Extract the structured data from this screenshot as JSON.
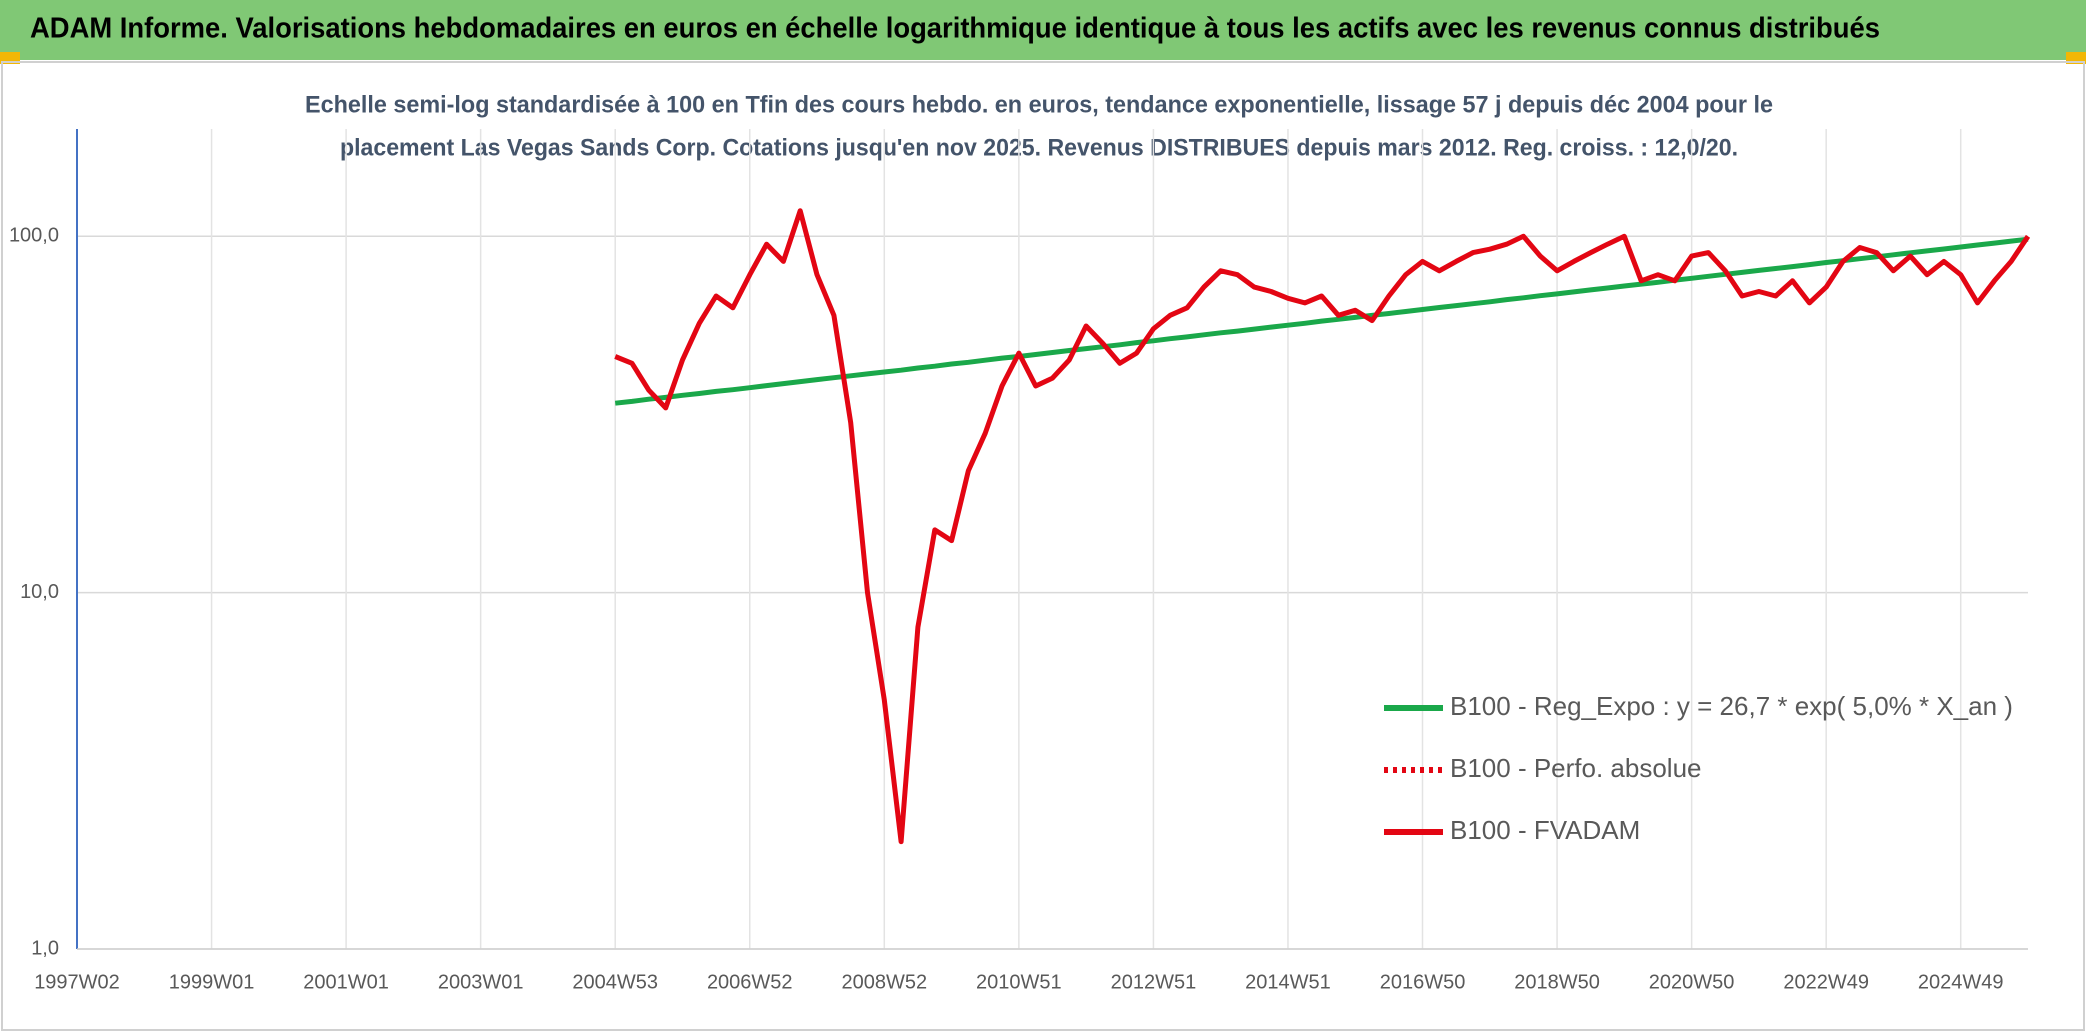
{
  "chart_data": {
    "type": "line",
    "title": "ADAM Informe. Valorisations hebdomadaires en euros en échelle logarithmique identique à tous les actifs avec les revenus connus distribués",
    "subtitle": [
      "Echelle semi-log standardisée à 100 en Tfin des cours hebdo. en euros, tendance exponentielle, lissage 57 j depuis déc 2004 pour le",
      "placement Las Vegas Sands Corp. Cotations jusqu'en nov 2025. Revenus DISTRIBUES depuis mars 2012. Reg. croiss. : 12,0/20."
    ],
    "categories": [
      "1997W02",
      null,
      null,
      null,
      null,
      null,
      null,
      null,
      "1999W01",
      null,
      null,
      null,
      null,
      null,
      null,
      null,
      "2001W01",
      null,
      null,
      null,
      null,
      null,
      null,
      null,
      "2003W01",
      null,
      null,
      null,
      null,
      null,
      null,
      null,
      "2004W53",
      null,
      null,
      null,
      null,
      null,
      null,
      null,
      "2006W52",
      null,
      null,
      null,
      null,
      null,
      null,
      null,
      "2008W52",
      null,
      null,
      null,
      null,
      null,
      null,
      null,
      "2010W51",
      null,
      null,
      null,
      null,
      null,
      null,
      null,
      "2012W51",
      null,
      null,
      null,
      null,
      null,
      null,
      null,
      "2014W51",
      null,
      null,
      null,
      null,
      null,
      null,
      null,
      "2016W50",
      null,
      null,
      null,
      null,
      null,
      null,
      null,
      "2018W50",
      null,
      null,
      null,
      null,
      null,
      null,
      null,
      "2020W50",
      null,
      null,
      null,
      null,
      null,
      null,
      null,
      "2022W49",
      null,
      null,
      null,
      null,
      null,
      null,
      null,
      "2024W49",
      null,
      null,
      null,
      null
    ],
    "series": [
      {
        "name": "B100 - Reg_Expo : y = 26,7 * exp( 5,0% *  X_an )",
        "color": "#1aa84a",
        "style": "solid",
        "values": [
          null,
          null,
          null,
          null,
          null,
          null,
          null,
          null,
          null,
          null,
          null,
          null,
          null,
          null,
          null,
          null,
          null,
          null,
          null,
          null,
          null,
          null,
          null,
          null,
          null,
          null,
          null,
          null,
          null,
          null,
          null,
          null,
          34.0,
          34.4,
          34.9,
          35.3,
          35.8,
          36.2,
          36.7,
          37.1,
          37.6,
          38.1,
          38.6,
          39.1,
          39.6,
          40.1,
          40.6,
          41.1,
          41.6,
          42.1,
          42.7,
          43.2,
          43.8,
          44.3,
          44.9,
          45.5,
          46.0,
          46.6,
          47.2,
          47.8,
          48.4,
          49.0,
          49.6,
          50.3,
          50.9,
          51.6,
          52.2,
          52.9,
          53.6,
          54.2,
          54.9,
          55.6,
          56.3,
          57.0,
          57.8,
          58.5,
          59.2,
          60.0,
          60.7,
          61.5,
          62.3,
          63.1,
          63.9,
          64.7,
          65.5,
          66.4,
          67.2,
          68.1,
          68.9,
          69.8,
          70.7,
          71.6,
          72.5,
          73.4,
          74.3,
          75.3,
          76.2,
          77.2,
          78.2,
          79.2,
          80.2,
          81.2,
          82.2,
          83.3,
          84.4,
          85.4,
          86.5,
          87.6,
          88.7,
          89.9,
          91.0,
          92.1,
          93.3,
          94.5,
          95.7,
          96.9,
          98.1
        ]
      },
      {
        "name": "B100 - Perfo. absolue",
        "color": "#e30613",
        "style": "dotted",
        "values": [
          null,
          null,
          null,
          null,
          null,
          null,
          null,
          null,
          null,
          null,
          null,
          null,
          null,
          null,
          null,
          null,
          null,
          null,
          null,
          null,
          null,
          null,
          null,
          null,
          null,
          null,
          null,
          null,
          null,
          null,
          null,
          null,
          null,
          null,
          null,
          null,
          null,
          null,
          null,
          null,
          null,
          null,
          null,
          null,
          null,
          null,
          null,
          null,
          null,
          null,
          null,
          null,
          null,
          null,
          null,
          null,
          null,
          null,
          null,
          null,
          null,
          null,
          null,
          null,
          null,
          null,
          null,
          null,
          null,
          null,
          null,
          null,
          null,
          null,
          null,
          null,
          null,
          null,
          null,
          null,
          null,
          null,
          null,
          null,
          null,
          null,
          null,
          null,
          null,
          null,
          null,
          null,
          null,
          null,
          null,
          null,
          null,
          null,
          null,
          null,
          null,
          null,
          null,
          null,
          null,
          null,
          null,
          null,
          null,
          null,
          null,
          null,
          null,
          null,
          null,
          null,
          null
        ]
      },
      {
        "name": "B100 - FVADAM",
        "color": "#e30613",
        "style": "solid",
        "values": [
          null,
          null,
          null,
          null,
          null,
          null,
          null,
          null,
          null,
          null,
          null,
          null,
          null,
          null,
          null,
          null,
          null,
          null,
          null,
          null,
          null,
          null,
          null,
          null,
          null,
          null,
          null,
          null,
          null,
          null,
          null,
          null,
          46,
          44,
          37,
          33,
          45,
          57,
          68,
          63,
          78,
          95,
          85,
          118,
          78,
          60,
          30,
          10,
          5,
          2.0,
          8,
          15,
          14,
          22,
          28,
          38,
          47,
          38,
          40,
          45,
          56,
          50,
          44,
          47,
          55,
          60,
          63,
          72,
          80,
          78,
          72,
          70,
          67,
          65,
          68,
          60,
          62,
          58,
          68,
          78,
          85,
          80,
          85,
          90,
          92,
          95,
          100,
          88,
          80,
          85,
          90,
          95,
          100,
          75,
          78,
          75,
          88,
          90,
          80,
          68,
          70,
          68,
          75,
          65,
          72,
          85,
          93,
          90,
          80,
          88,
          78,
          85,
          78,
          65,
          75,
          85,
          100
        ]
      }
    ],
    "ylim": [
      1,
      200
    ],
    "yticks": [
      {
        "value": 1,
        "label": "1,0"
      },
      {
        "value": 10,
        "label": "10,0"
      },
      {
        "value": 100,
        "label": "100,0"
      }
    ],
    "ylog": true,
    "grid": true,
    "legend": "lower right"
  }
}
